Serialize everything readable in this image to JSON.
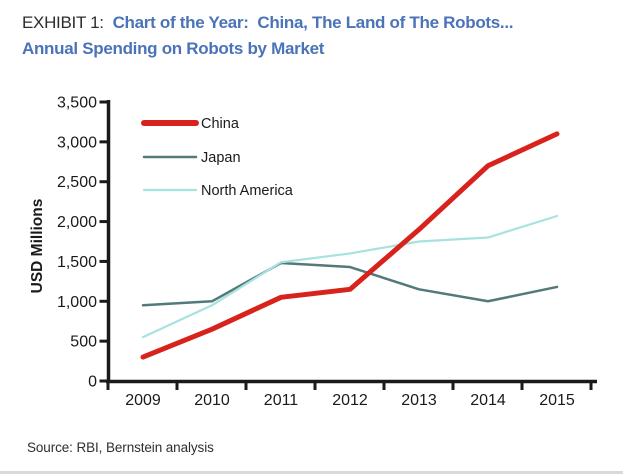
{
  "header": {
    "exhibit_label": "EXHIBIT 1:",
    "title_line1": "Chart of the Year:  China, The Land of The Robots...",
    "title_line2": "Annual Spending on Robots by Market"
  },
  "chart_data": {
    "type": "line",
    "title": "Annual Spending on Robots by Market",
    "x": [
      "2009",
      "2010",
      "2011",
      "2012",
      "2013",
      "2014",
      "2015"
    ],
    "series": [
      {
        "name": "China",
        "color": "#d8231d",
        "stroke_width": 5,
        "values": [
          300,
          650,
          1050,
          1150,
          1900,
          2700,
          3100
        ]
      },
      {
        "name": "Japan",
        "color": "#527a78",
        "stroke_width": 2.5,
        "values": [
          950,
          1000,
          1480,
          1430,
          1150,
          1000,
          1180
        ]
      },
      {
        "name": "North America",
        "color": "#a8e2e0",
        "stroke_width": 2.2,
        "values": [
          550,
          950,
          1490,
          1600,
          1750,
          1800,
          2070
        ]
      }
    ],
    "xlabel": "",
    "ylabel": "USD Millions",
    "ylim": [
      0,
      3500
    ],
    "ytick_step": 500,
    "ytick_labels": [
      "0",
      "500",
      "1,000",
      "1,500",
      "2,000",
      "2,500",
      "3,000",
      "3,500"
    ],
    "legend_position": "upper-left",
    "legend_entries": [
      "China",
      "Japan",
      "North America"
    ],
    "grid": false
  },
  "source": {
    "text": "Source: RBI, Bernstein analysis"
  },
  "colors": {
    "title_blue": "#4a73b8",
    "exhibit_text": "#2d2d2d",
    "axis": "#1a1a1a",
    "china_red": "#d8231d",
    "japan_teal": "#527a78",
    "north_america_cyan": "#a8e2e0"
  }
}
